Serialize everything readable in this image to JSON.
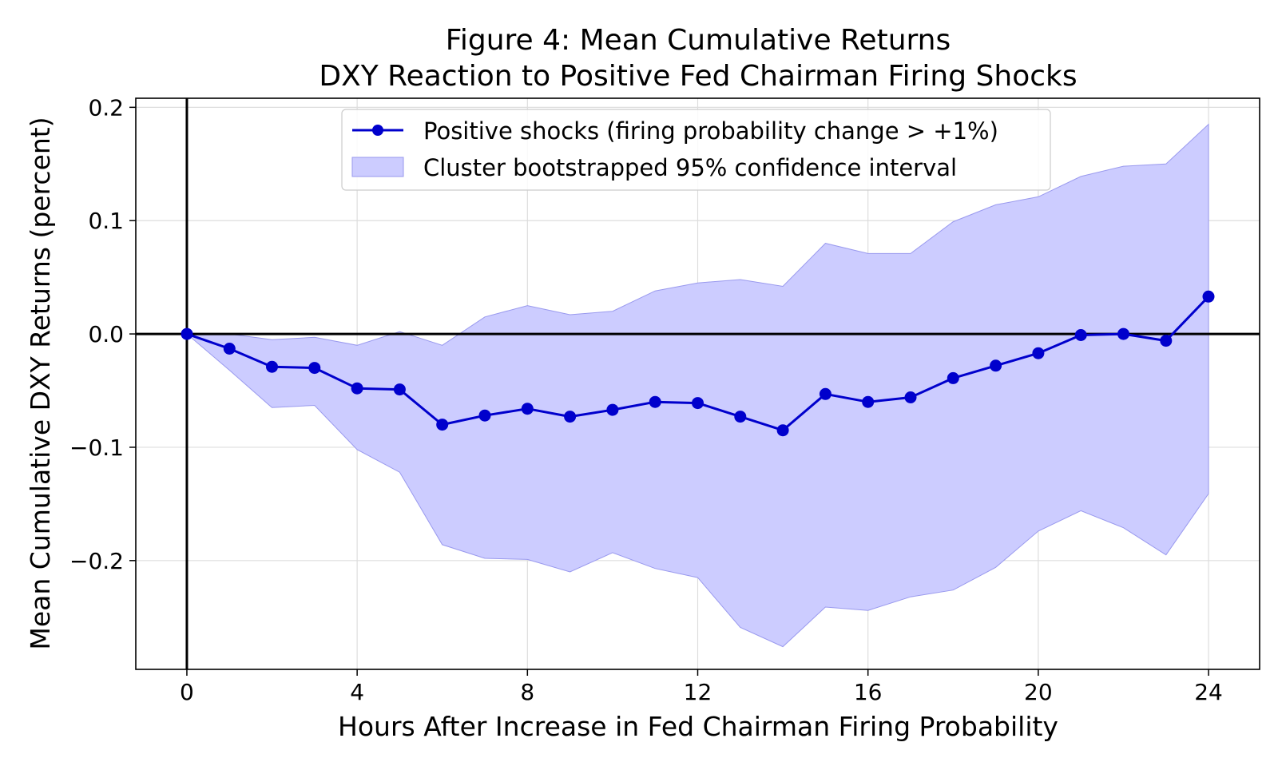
{
  "chart_data": {
    "type": "line",
    "title_line1": "Figure 4: Mean Cumulative Returns",
    "title_line2": "DXY Reaction to Positive Fed Chairman Firing Shocks",
    "xlabel": "Hours After Increase in Fed Chairman Firing Probability",
    "ylabel": "Mean Cumulative DXY Returns (percent)",
    "xlim": [
      -1.2,
      25.2
    ],
    "ylim": [
      -0.296,
      0.208
    ],
    "xticks": [
      0,
      4,
      8,
      12,
      16,
      20,
      24
    ],
    "xtick_labels": [
      "0",
      "4",
      "8",
      "12",
      "16",
      "20",
      "24"
    ],
    "yticks": [
      -0.2,
      -0.1,
      0.0,
      0.1,
      0.2
    ],
    "ytick_labels": [
      "−0.2",
      "−0.1",
      "0.0",
      "0.1",
      "0.2"
    ],
    "grid": true,
    "legend_position": "top-center",
    "series": [
      {
        "name": "Positive shocks (firing probability change > +1%)",
        "color": "#0000cc",
        "x": [
          0,
          1,
          2,
          3,
          4,
          5,
          6,
          7,
          8,
          9,
          10,
          11,
          12,
          13,
          14,
          15,
          16,
          17,
          18,
          19,
          20,
          21,
          22,
          23,
          24
        ],
        "values": [
          0.0,
          -0.013,
          -0.029,
          -0.03,
          -0.048,
          -0.049,
          -0.08,
          -0.072,
          -0.066,
          -0.073,
          -0.067,
          -0.06,
          -0.061,
          -0.073,
          -0.085,
          -0.053,
          -0.06,
          -0.056,
          -0.039,
          -0.028,
          -0.017,
          -0.001,
          0.0,
          -0.006,
          0.033
        ]
      }
    ],
    "confidence_band": {
      "name": "Cluster bootstrapped 95% confidence interval",
      "color": "#ccccff",
      "edge_color": "#9999ee",
      "x": [
        0,
        1,
        2,
        3,
        4,
        5,
        6,
        7,
        8,
        9,
        10,
        11,
        12,
        13,
        14,
        15,
        16,
        17,
        18,
        19,
        20,
        21,
        22,
        23,
        24
      ],
      "upper": [
        0.0,
        0.0,
        -0.005,
        -0.003,
        -0.01,
        0.002,
        -0.01,
        0.015,
        0.025,
        0.017,
        0.02,
        0.038,
        0.045,
        0.048,
        0.042,
        0.08,
        0.071,
        0.071,
        0.099,
        0.114,
        0.121,
        0.139,
        0.148,
        0.15,
        0.185
      ],
      "lower": [
        0.0,
        -0.032,
        -0.065,
        -0.063,
        -0.102,
        -0.122,
        -0.186,
        -0.198,
        -0.199,
        -0.21,
        -0.193,
        -0.207,
        -0.215,
        -0.259,
        -0.276,
        -0.241,
        -0.244,
        -0.232,
        -0.226,
        -0.206,
        -0.174,
        -0.156,
        -0.171,
        -0.195,
        -0.141
      ]
    },
    "reference_lines": {
      "horizontal_at": 0.0,
      "vertical_at": 0
    }
  }
}
